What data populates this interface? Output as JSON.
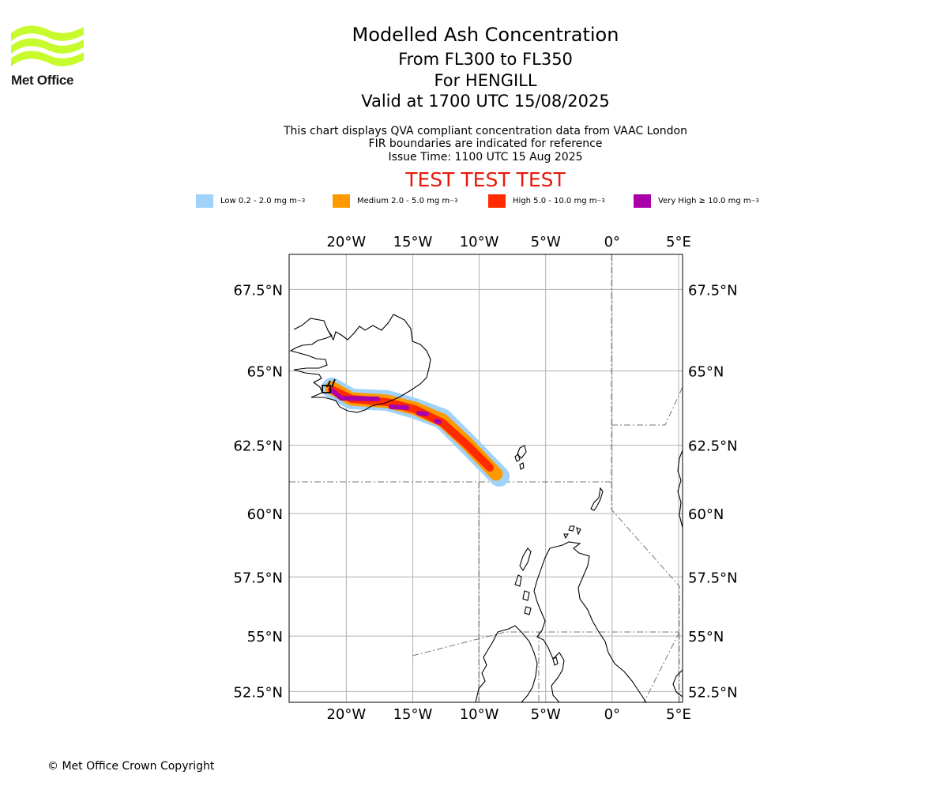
{
  "brand": {
    "name": "Met Office",
    "logo_color": "#c8fb2e",
    "logo_icon": "wave-logo-icon"
  },
  "title": "Modelled Ash Concentration",
  "subtitles": [
    "From FL300 to FL350",
    "For HENGILL",
    "Valid at 1700 UTC 15/08/2025"
  ],
  "info_lines": [
    "This chart displays QVA compliant concentration data from VAAC London",
    "FIR boundaries are indicated for reference",
    "Issue Time: 1100 UTC 15 Aug 2025"
  ],
  "warning": "TEST TEST TEST",
  "legend": [
    {
      "label": "Low 0.2 - 2.0 mg m",
      "color": "#a0d2fa"
    },
    {
      "label": "Medium 2.0 - 5.0 mg m",
      "color": "#ff9900"
    },
    {
      "label": "High 5.0 - 10.0 mg m",
      "color": "#ff2a00"
    },
    {
      "label": "Very High ≥ 10.0 mg m",
      "color": "#aa00aa"
    }
  ],
  "legend_unit_exp": "−3",
  "map": {
    "lon_ticks": [
      "20°W",
      "15°W",
      "10°W",
      "5°W",
      "0°",
      "5°E"
    ],
    "lat_ticks": [
      "67.5°N",
      "65°N",
      "62.5°N",
      "60°N",
      "57.5°N",
      "55°N",
      "52.5°N"
    ],
    "lon_values": [
      -20,
      -15,
      -10,
      -5,
      0,
      5
    ],
    "lat_values": [
      67.5,
      65,
      62.5,
      60,
      57.5,
      55,
      52.5
    ],
    "extent": {
      "lon_min": -24.3,
      "lon_max": 5.3,
      "lat_min": 52,
      "lat_max": 68.5
    },
    "volcano": "HENGILL"
  },
  "copyright": "© Met Office Crown Copyright"
}
